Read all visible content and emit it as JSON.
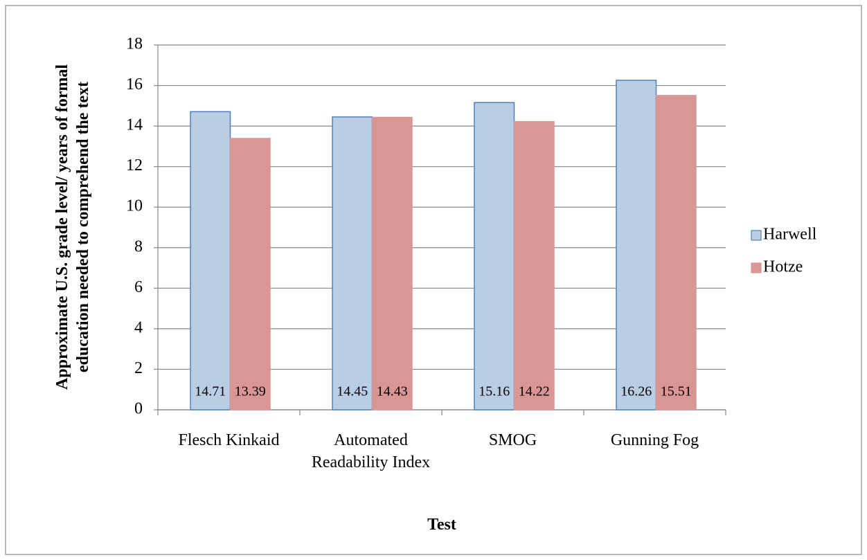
{
  "chart_data": {
    "type": "bar",
    "ylabel": "Approximate U.S. grade level/ years of formal education needed to comprehend the text",
    "xlabel": "Test",
    "categories": [
      "Flesch Kinkaid",
      "Automated Readability Index",
      "SMOG",
      "Gunning Fog"
    ],
    "series": [
      {
        "name": "Harwell",
        "color": "#b9cde5",
        "edge": "#4f81bd",
        "values": [
          14.71,
          14.45,
          15.16,
          16.26
        ]
      },
      {
        "name": "Hotze",
        "color": "#d99694",
        "edge": "#d99694",
        "values": [
          13.39,
          14.43,
          14.22,
          15.51
        ]
      }
    ],
    "ylim": [
      0,
      18
    ],
    "yticks": [
      0,
      2,
      4,
      6,
      8,
      10,
      12,
      14,
      16,
      18
    ],
    "grid": true,
    "legend": "right"
  }
}
